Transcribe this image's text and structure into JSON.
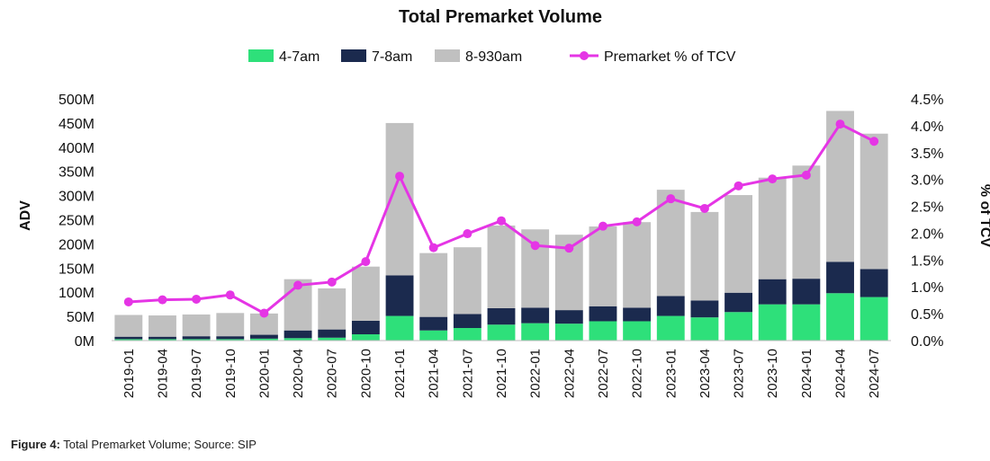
{
  "chart_data": {
    "type": "bar",
    "stacked": true,
    "title": "Total Premarket Volume",
    "ylabel": "ADV",
    "y2label": "% of TCV",
    "ylim": [
      0,
      500
    ],
    "y2lim": [
      0,
      4.5
    ],
    "yticks": [
      "0M",
      "50M",
      "100M",
      "150M",
      "200M",
      "250M",
      "300M",
      "350M",
      "400M",
      "450M",
      "500M"
    ],
    "y2ticks": [
      "0.0%",
      "0.5%",
      "1.0%",
      "1.5%",
      "2.0%",
      "2.5%",
      "3.0%",
      "3.5%",
      "4.0%",
      "4.5%"
    ],
    "legend_position": "top-center",
    "grid": false,
    "categories": [
      "2019-01",
      "2019-04",
      "2019-07",
      "2019-10",
      "2020-01",
      "2020-04",
      "2020-07",
      "2020-10",
      "2021-01",
      "2021-04",
      "2021-07",
      "2021-10",
      "2022-01",
      "2022-04",
      "2022-07",
      "2022-10",
      "2023-01",
      "2023-04",
      "2023-07",
      "2023-10",
      "2024-01",
      "2024-04",
      "2024-07"
    ],
    "series": [
      {
        "name": "4-7am",
        "color": "#2ee07a",
        "axis": "left",
        "kind": "bar",
        "values": [
          3,
          3,
          3,
          3,
          4,
          5,
          6,
          13,
          51,
          21,
          26,
          33,
          36,
          35,
          40,
          40,
          51,
          48,
          59,
          75,
          75,
          98,
          90
        ]
      },
      {
        "name": "7-8am",
        "color": "#1b2a4e",
        "axis": "left",
        "kind": "bar",
        "values": [
          5,
          5,
          6,
          6,
          8,
          16,
          17,
          28,
          84,
          28,
          29,
          34,
          32,
          28,
          31,
          28,
          41,
          35,
          40,
          52,
          53,
          65,
          58
        ]
      },
      {
        "name": "8-930am",
        "color": "#c0c0c0",
        "axis": "left",
        "kind": "bar",
        "values": [
          45,
          44,
          45,
          48,
          44,
          106,
          85,
          112,
          315,
          132,
          138,
          171,
          162,
          156,
          165,
          177,
          220,
          183,
          202,
          210,
          234,
          312,
          280
        ]
      },
      {
        "name": "Premarket % of TCV",
        "color": "#e535e5",
        "axis": "right",
        "kind": "line",
        "values": [
          0.72,
          0.76,
          0.77,
          0.85,
          0.51,
          1.03,
          1.09,
          1.47,
          3.06,
          1.73,
          1.99,
          2.23,
          1.77,
          1.72,
          2.13,
          2.21,
          2.64,
          2.46,
          2.88,
          3.01,
          3.08,
          4.03,
          3.71
        ]
      }
    ]
  },
  "caption": {
    "label": "Figure 4:",
    "text": "Total Premarket Volume; Source: SIP"
  }
}
